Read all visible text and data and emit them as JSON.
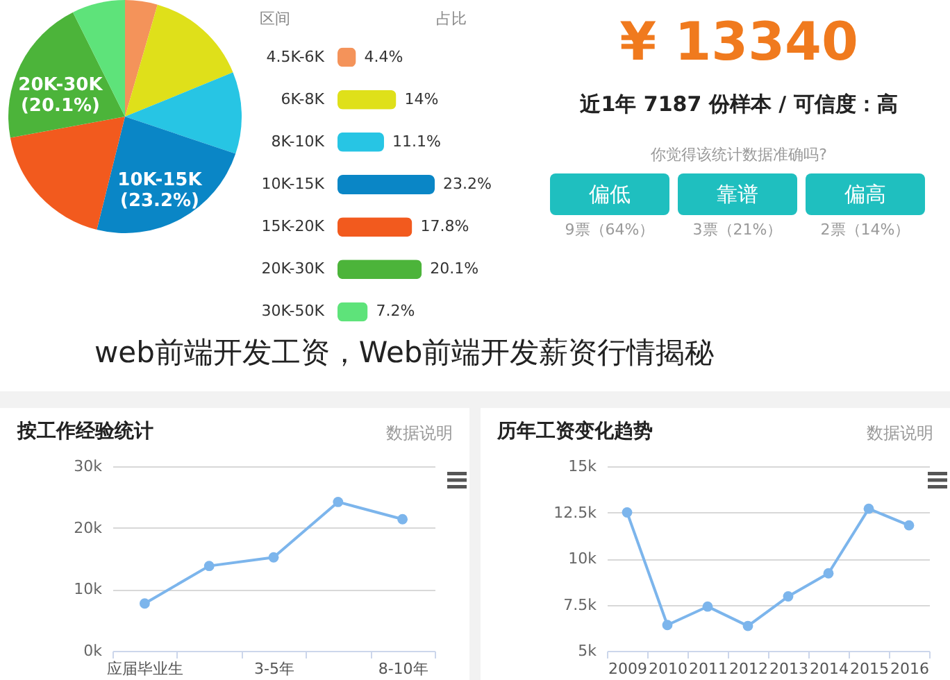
{
  "chart_data": [
    {
      "type": "pie",
      "categories": [
        null,
        null,
        null,
        "10K-15K",
        null,
        "20K-30K",
        null
      ],
      "values": [
        4.4,
        14,
        11.1,
        23.2,
        17.8,
        20.1,
        7.2
      ],
      "colors": [
        "#f4935a",
        "#dfe01a",
        "#27c5e4",
        "#0a86c6",
        "#f25a1e",
        "#4cb43a",
        "#5ee37a"
      ],
      "value_labels": [
        null,
        null,
        null,
        "(23.2%)",
        null,
        "(20.1%)",
        null
      ],
      "annotations": [
        "web前端开发工资，Web前端开发薪资行情揭秘"
      ]
    },
    {
      "type": "bar",
      "orientation": "horizontal",
      "ylabel": "区间",
      "categories": [
        "4.5K-6K",
        "6K-8K",
        "8K-10K",
        "10K-15K",
        "15K-20K",
        "20K-30K",
        "30K-50K"
      ],
      "values": [
        4.4,
        14,
        11.1,
        23.2,
        17.8,
        20.1,
        7.2
      ],
      "colors": [
        "#f4935a",
        "#dfe01a",
        "#27c5e4",
        "#0a86c6",
        "#f25a1e",
        "#4cb43a",
        "#5ee37a"
      ],
      "value_labels": [
        "4.4%",
        "14%",
        "11.1%",
        "23.2%",
        "17.8%",
        "20.1%",
        "7.2%"
      ],
      "annotations": [
        "占比"
      ]
    },
    {
      "type": "other",
      "title": "¥ 13340",
      "subtitle": "近1年 7187 份样本 / 可信度：高",
      "annotations": [
        "你觉得该统计数据准确吗?",
        "偏低",
        "靠谱",
        "偏高",
        "9票（64%）",
        "3票（21%）",
        "2票（14%）"
      ]
    },
    {
      "type": "line",
      "title": "按工作经验统计",
      "categories": [
        "应届毕业生",
        null,
        "3-5年",
        null,
        "8-10年"
      ],
      "series": [
        {
          "color": "#7cb5ec",
          "values": [
            7.7,
            13.8,
            15.2,
            24.2,
            21.4
          ]
        }
      ],
      "ylim": [
        0,
        30
      ],
      "yticks": [
        {
          "value": 0,
          "label": "0k"
        },
        {
          "value": 10,
          "label": "10k"
        },
        {
          "value": 20,
          "label": "20k"
        },
        {
          "value": 30,
          "label": "30k"
        }
      ],
      "grid": "y",
      "marker": "circle",
      "annotations": [
        "数据说明"
      ]
    },
    {
      "type": "line",
      "title": "历年工资变化趋势",
      "categories": [
        "2009",
        "2010",
        "2011",
        "2012",
        "2013",
        "2014",
        "2015",
        "2016"
      ],
      "series": [
        {
          "color": "#7cb5ec",
          "values": [
            12.5,
            6.4,
            7.4,
            6.35,
            7.95,
            9.2,
            12.7,
            11.8
          ]
        }
      ],
      "ylim": [
        5,
        15
      ],
      "yticks": [
        {
          "value": 5,
          "label": "5k"
        },
        {
          "value": 7.5,
          "label": "7.5k"
        },
        {
          "value": 10,
          "label": "10k"
        },
        {
          "value": 12.5,
          "label": "12.5k"
        },
        {
          "value": 15,
          "label": "15k"
        }
      ],
      "grid": "y",
      "marker": "circle",
      "annotations": [
        "数据说明"
      ]
    }
  ]
}
